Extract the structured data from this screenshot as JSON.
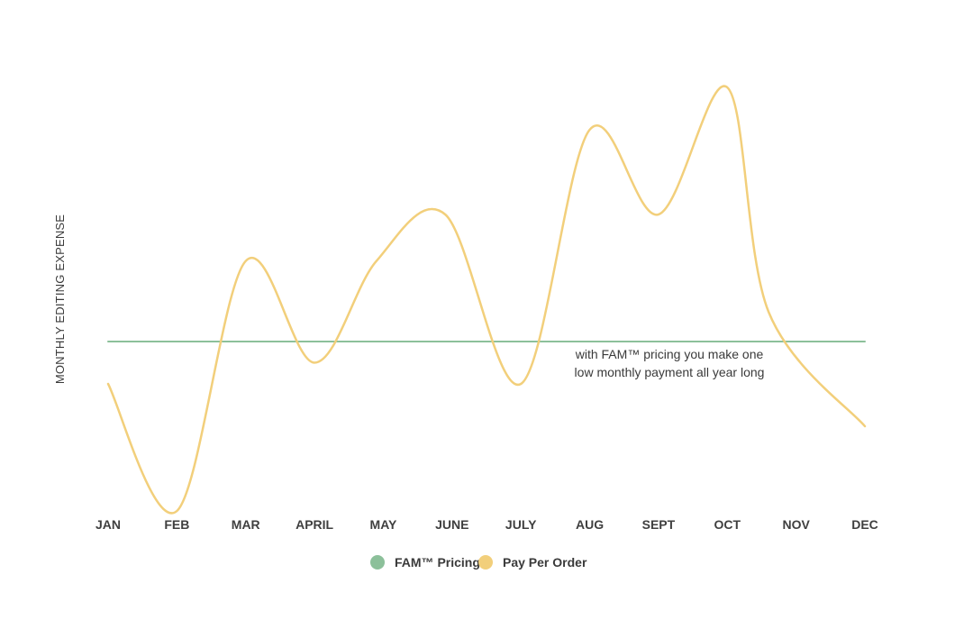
{
  "chart_data": {
    "type": "line",
    "title": "",
    "xlabel": "",
    "ylabel": "MONTHLY EDITING EXPENSE",
    "categories": [
      "JAN",
      "FEB",
      "MAR",
      "APRIL",
      "MAY",
      "JUNE",
      "JULY",
      "AUG",
      "SEPT",
      "OCT",
      "NOV",
      "DEC"
    ],
    "ylim": [
      0,
      100
    ],
    "y_ticks_shown": false,
    "grid": false,
    "legend_position": "bottom-center",
    "series": [
      {
        "name": "FAM™ Pricing",
        "color": "#8cc09a",
        "style": "flat",
        "values": [
          40,
          40,
          40,
          40,
          40,
          40,
          40,
          40,
          40,
          40,
          40,
          40
        ]
      },
      {
        "name": "Pay Per Order",
        "color": "#f2cf7b",
        "style": "smooth",
        "x": [
          0,
          1,
          2,
          3,
          3.9,
          4.9,
          6,
          7,
          8,
          9,
          9.6,
          11
        ],
        "values": [
          30,
          0,
          59,
          35,
          59,
          70,
          30,
          90,
          70,
          100,
          47,
          20
        ]
      }
    ],
    "annotations": [
      {
        "lines": [
          "with FAM™ pricing you make one",
          "low monthly payment all year long"
        ],
        "near": "between JULY and NOV, just below the FAM™ Pricing line"
      }
    ]
  }
}
